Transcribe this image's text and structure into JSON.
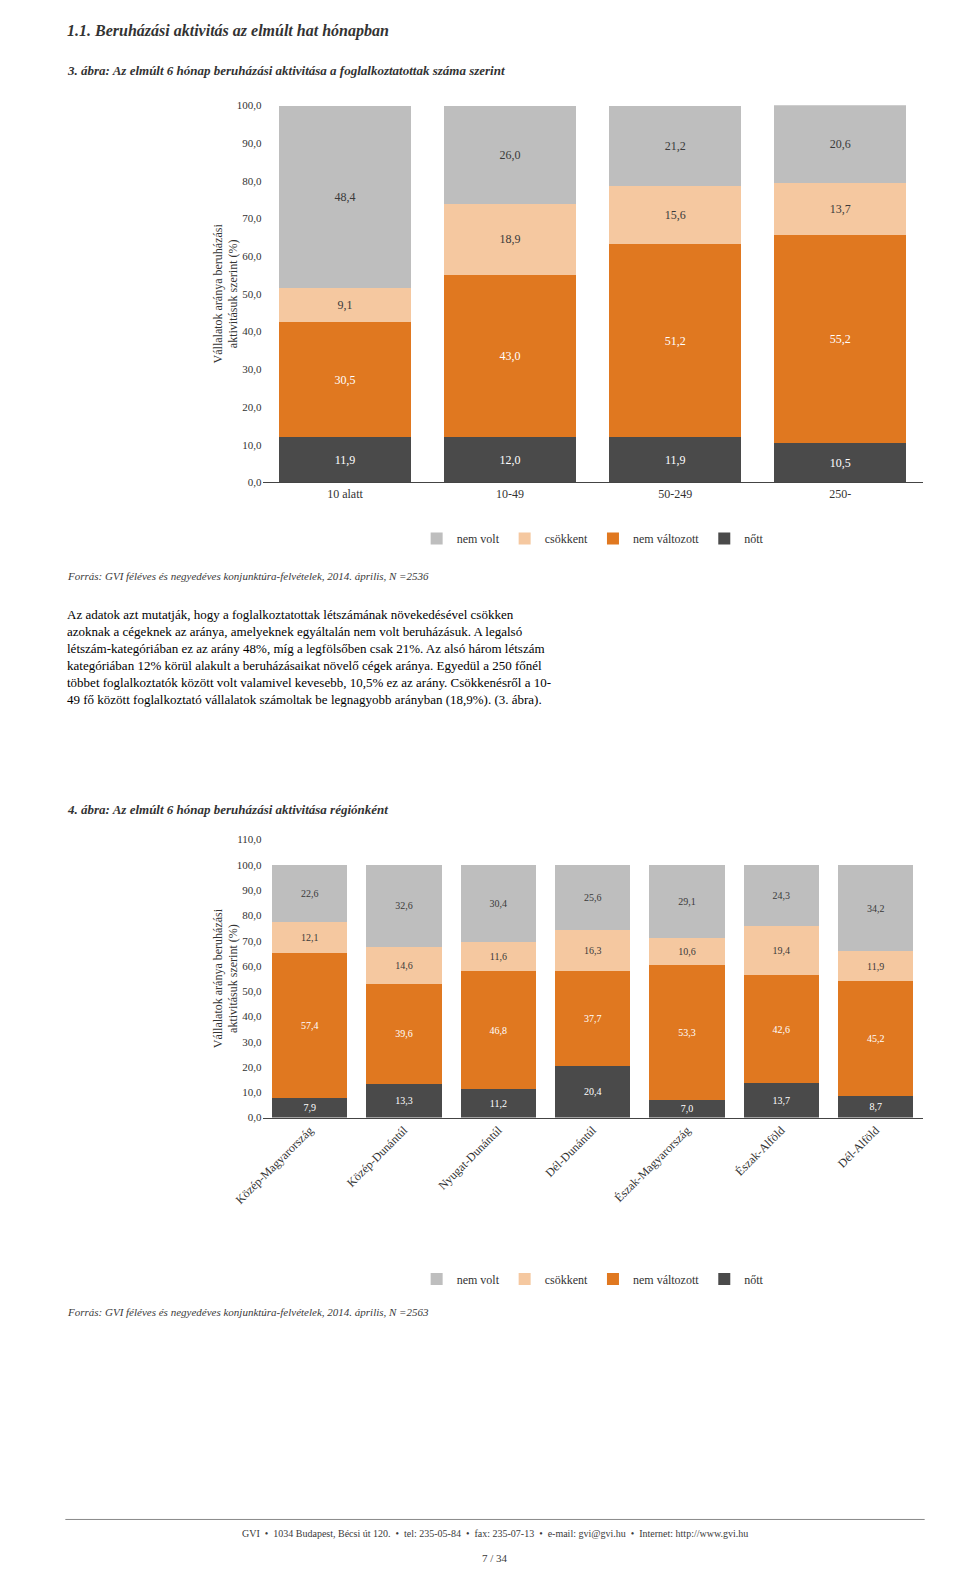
{
  "title": "1.1. Beruházási aktivitás az elmúlt hat hónapban",
  "annotations": [
    "Az adatok azt mutatják, hogy a foglalkoztatottak létszámának növekedésével csökken\nazoknak a cégeknek az aránya, amelyeknek egyáltalán nem volt beruházásuk. A legalsó\nlétszám-kategóriában ez az arány 48%, míg a legfölsőben csak 21%. Az alsó három létszám\nkategóriában 12% körül alakult a beruházásaikat növelő cégek aránya. Egyedül a 250 főnél\ntöbbet foglalkoztatók között volt valamivel kevesebb, 10,5% ez az arány. Csökkenésről a 10-\n49 fő között foglalkoztató vállalatok számoltak be legnagyobb arányban (18,9%). (3. ábra).",
    "GVI  •  1034 Budapest, Bécsi út 120.  •  tel: 235-05-84  •  fax: 235-07-13  •  e-mail: gvi@gvi.hu  •  Internet: http://www.gvi.hu",
    "7 / 34"
  ],
  "chart_data": [
    {
      "type": "bar",
      "stacked": true,
      "title": "3. ábra: Az elmúlt 6 hónap beruházási aktivitása a foglalkoztatottak száma szerint",
      "categories": [
        "10 alatt",
        "10-49",
        "50-249",
        "250-"
      ],
      "series": [
        {
          "name": "nőtt",
          "color": "#4A4A4A",
          "values": [
            11.9,
            12.0,
            11.9,
            10.5
          ],
          "value_labels": [
            "11,9",
            "12,0",
            "11,9",
            "10,5"
          ]
        },
        {
          "name": "nem változott",
          "color": "#E07820",
          "values": [
            30.5,
            43.0,
            51.2,
            55.2
          ],
          "value_labels": [
            "30,5",
            "43,0",
            "51,2",
            "55,2"
          ]
        },
        {
          "name": "csökkent",
          "color": "#F5C8A0",
          "values": [
            9.1,
            18.9,
            15.6,
            13.7
          ],
          "value_labels": [
            "9,1",
            "18,9",
            "15,6",
            "13,7"
          ]
        },
        {
          "name": "nem volt",
          "color": "#BEBEBE",
          "values": [
            48.4,
            26.0,
            21.2,
            20.6
          ],
          "value_labels": [
            "48,4",
            "26,0",
            "21,2",
            "20,6"
          ]
        }
      ],
      "ylabel": "Vállalatok aránya beruházási\naktivitásuk szerint (%)",
      "ylim": [
        0,
        100
      ],
      "yticks": [
        {
          "value": 0,
          "label": "0,0"
        },
        {
          "value": 10,
          "label": "10,0"
        },
        {
          "value": 20,
          "label": "20,0"
        },
        {
          "value": 30,
          "label": "30,0"
        },
        {
          "value": 40,
          "label": "40,0"
        },
        {
          "value": 50,
          "label": "50,0"
        },
        {
          "value": 60,
          "label": "60,0"
        },
        {
          "value": 70,
          "label": "70,0"
        },
        {
          "value": 80,
          "label": "80,0"
        },
        {
          "value": 90,
          "label": "90,0"
        },
        {
          "value": 100,
          "label": "100,0"
        }
      ],
      "grid": false,
      "legend": "bottom",
      "data_labels": true,
      "annotations": [
        "Forrás: GVI féléves és negyedéves konjunktúra-felvételek, 2014. április, N =2536"
      ]
    },
    {
      "type": "bar",
      "stacked": true,
      "title": "4. ábra: Az elmúlt 6 hónap beruházási aktivitása régiónként",
      "categories": [
        "Közép-Magyarország",
        "Közép-Dunántúl",
        "Nyugat-Dunántúl",
        "Dél-Dunántúl",
        "Észak-Magyarország",
        "Észak-Alföld",
        "Dél-Alföld"
      ],
      "series": [
        {
          "name": "nőtt",
          "color": "#4A4A4A",
          "values": [
            7.9,
            13.3,
            11.2,
            20.4,
            7.0,
            13.7,
            8.7
          ],
          "value_labels": [
            "7,9",
            "13,3",
            "11,2",
            "20,4",
            "7,0",
            "13,7",
            "8,7"
          ]
        },
        {
          "name": "nem változott",
          "color": "#E07820",
          "values": [
            57.4,
            39.6,
            46.8,
            37.7,
            53.3,
            42.6,
            45.2
          ],
          "value_labels": [
            "57,4",
            "39,6",
            "46,8",
            "37,7",
            "53,3",
            "42,6",
            "45,2"
          ]
        },
        {
          "name": "csökkent",
          "color": "#F5C8A0",
          "values": [
            12.1,
            14.6,
            11.6,
            16.3,
            10.6,
            19.4,
            11.9
          ],
          "value_labels": [
            "12,1",
            "14,6",
            "11,6",
            "16,3",
            "10,6",
            "19,4",
            "11,9"
          ]
        },
        {
          "name": "nem volt",
          "color": "#BEBEBE",
          "values": [
            22.6,
            32.6,
            30.4,
            25.6,
            29.1,
            24.3,
            34.2
          ],
          "value_labels": [
            "22,6",
            "32,6",
            "30,4",
            "25,6",
            "29,1",
            "24,3",
            "34,2"
          ]
        }
      ],
      "ylabel": "Vállalatok aránya beruházási\naktivitásuk szerint (%)",
      "ylim": [
        0,
        110
      ],
      "yticks": [
        {
          "value": 0,
          "label": "0,0"
        },
        {
          "value": 10,
          "label": "10,0"
        },
        {
          "value": 20,
          "label": "20,0"
        },
        {
          "value": 30,
          "label": "30,0"
        },
        {
          "value": 40,
          "label": "40,0"
        },
        {
          "value": 50,
          "label": "50,0"
        },
        {
          "value": 60,
          "label": "60,0"
        },
        {
          "value": 70,
          "label": "70,0"
        },
        {
          "value": 80,
          "label": "80,0"
        },
        {
          "value": 90,
          "label": "90,0"
        },
        {
          "value": 100,
          "label": "100,0"
        },
        {
          "value": 110,
          "label": "110,0"
        }
      ],
      "grid": false,
      "legend": "bottom",
      "data_labels": true,
      "annotations": [
        "Forrás: GVI féléves és negyedéves konjunktúra-felvételek, 2014. április, N =2563"
      ]
    }
  ]
}
